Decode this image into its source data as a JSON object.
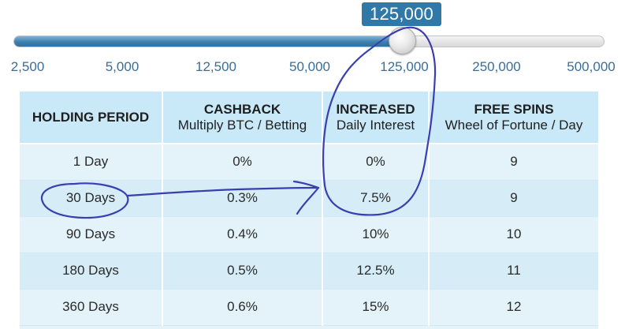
{
  "slider": {
    "current_value": "125,000",
    "ticks": [
      "2,500",
      "5,000",
      "12,500",
      "50,000",
      "125,000",
      "250,000",
      "500,000"
    ],
    "accent_color": "#2f78a8"
  },
  "table": {
    "headers": [
      {
        "main": "HOLDING PERIOD",
        "sub": ""
      },
      {
        "main": "CASHBACK",
        "sub": "Multiply BTC / Betting"
      },
      {
        "main": "INCREASED",
        "sub": "Daily Interest"
      },
      {
        "main": "FREE SPINS",
        "sub": "Wheel of Fortune / Day"
      }
    ],
    "rows": [
      [
        "1 Day",
        "0%",
        "0%",
        "9"
      ],
      [
        "30 Days",
        "0.3%",
        "7.5%",
        "9"
      ],
      [
        "90 Days",
        "0.4%",
        "10%",
        "10"
      ],
      [
        "180 Days",
        "0.5%",
        "12.5%",
        "11"
      ],
      [
        "360 Days",
        "0.6%",
        "15%",
        "12"
      ]
    ]
  },
  "annotation_color": "#3a3fb0"
}
